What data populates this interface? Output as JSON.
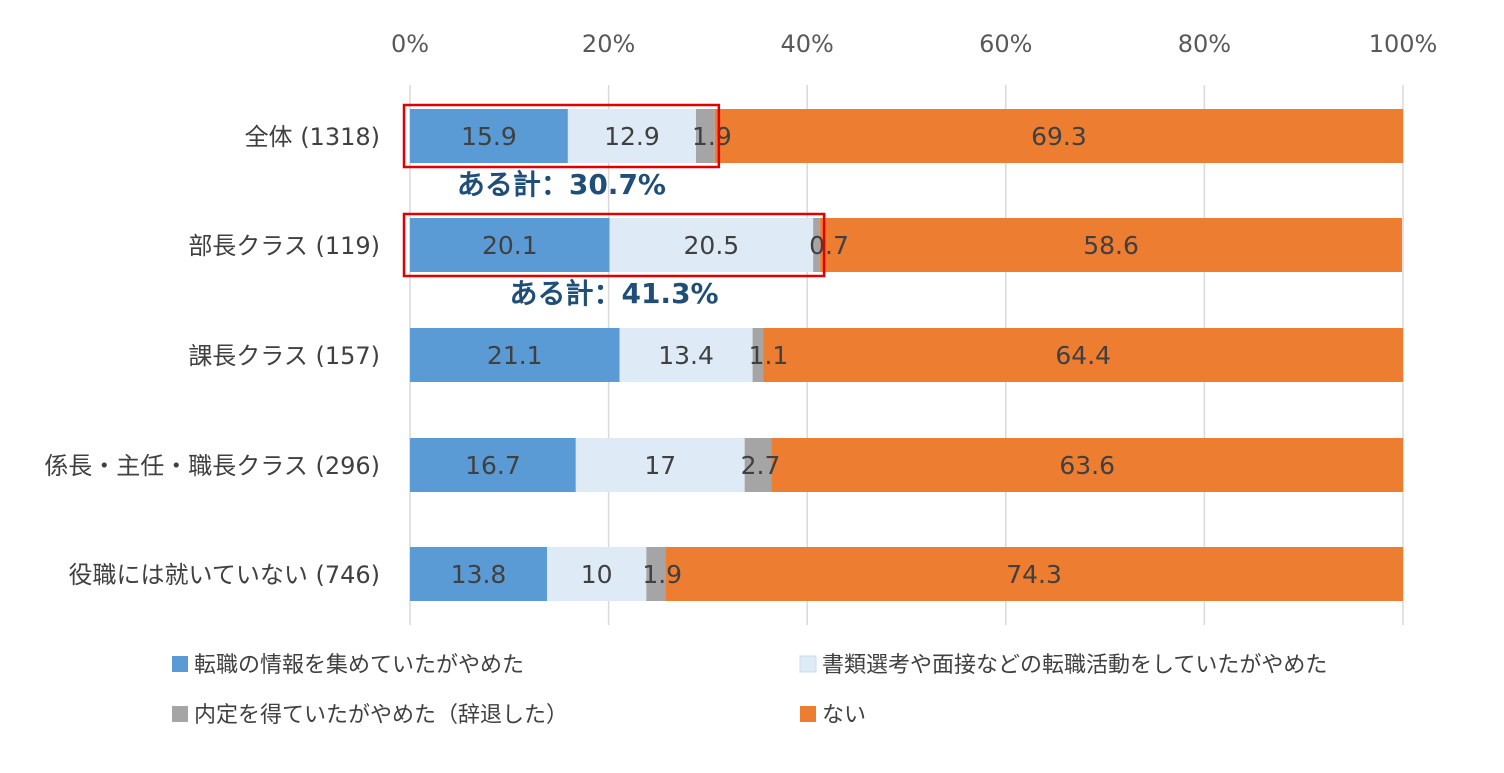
{
  "chart_data": {
    "type": "bar",
    "orientation": "horizontal",
    "stacked": true,
    "xlim": [
      0,
      100
    ],
    "xticks": [
      "0%",
      "20%",
      "40%",
      "60%",
      "80%",
      "100%"
    ],
    "categories": [
      "全体 (1318)",
      "部長クラス (119)",
      "課長クラス (157)",
      "係長・主任・職長クラス (296)",
      "役職には就いていない (746)"
    ],
    "series": [
      {
        "name": "転職の情報を集めていたがやめた",
        "color": "#5B9BD5",
        "values": [
          15.9,
          20.1,
          21.1,
          16.7,
          13.8
        ],
        "labels": [
          "15.9",
          "20.1",
          "21.1",
          "16.7",
          "13.8"
        ]
      },
      {
        "name": "書類選考や面接などの転職活動をしていたがやめた",
        "color": "#DEEBF7",
        "values": [
          12.9,
          20.5,
          13.4,
          17,
          10
        ],
        "labels": [
          "12.9",
          "20.5",
          "13.4",
          "17",
          "10"
        ]
      },
      {
        "name": "内定を得ていたがやめた（辞退した）",
        "color": "#A5A5A5",
        "values": [
          1.9,
          0.7,
          1.1,
          2.7,
          1.9
        ],
        "labels": [
          "1.9",
          "0.7",
          "1.1",
          "2.7",
          "1.9"
        ]
      },
      {
        "name": "ない",
        "color": "#ED7D31",
        "values": [
          69.3,
          58.6,
          64.4,
          63.6,
          74.3
        ],
        "labels": [
          "69.3",
          "58.6",
          "64.4",
          "63.6",
          "74.3"
        ]
      }
    ],
    "annotations": [
      {
        "category_index": 0,
        "text": "ある計：30.7%",
        "highlight_series": 3
      },
      {
        "category_index": 1,
        "text": "ある計：41.3%",
        "highlight_series": 3
      }
    ],
    "legend_position": "bottom",
    "grid": true,
    "colors": {
      "grid": "#D9D9D9",
      "highlight_box": "#E00000",
      "annotation_text": "#1F4E79"
    }
  }
}
